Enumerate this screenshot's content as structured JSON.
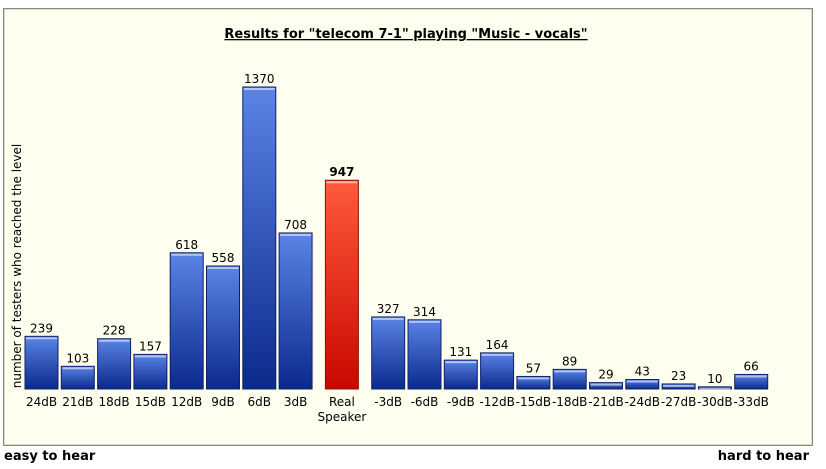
{
  "chart_data": {
    "type": "bar",
    "title": "Results for \"telecom 7-1\" playing \"Music - vocals\"",
    "ylabel": "number of testers who reached the level",
    "xlabel": "",
    "ylim": [
      0,
      1370
    ],
    "grid": false,
    "legend": "none",
    "categories": [
      "24dB",
      "21dB",
      "18dB",
      "15dB",
      "12dB",
      "9dB",
      "6dB",
      "3dB",
      "Real Speaker",
      "-3dB",
      "-6dB",
      "-9dB",
      "-12dB",
      "-15dB",
      "-18dB",
      "-21dB",
      "-24dB",
      "-27dB",
      "-30dB",
      "-33dB"
    ],
    "values": [
      239,
      103,
      228,
      157,
      618,
      558,
      1370,
      708,
      947,
      327,
      314,
      131,
      164,
      57,
      89,
      29,
      43,
      23,
      10,
      66
    ],
    "highlight_index": 8,
    "colors": {
      "bar": "#2850c8",
      "highlight": "#e01a10",
      "background": "#ffffef"
    }
  },
  "captions": {
    "left": "easy to hear",
    "right": "hard to hear"
  }
}
